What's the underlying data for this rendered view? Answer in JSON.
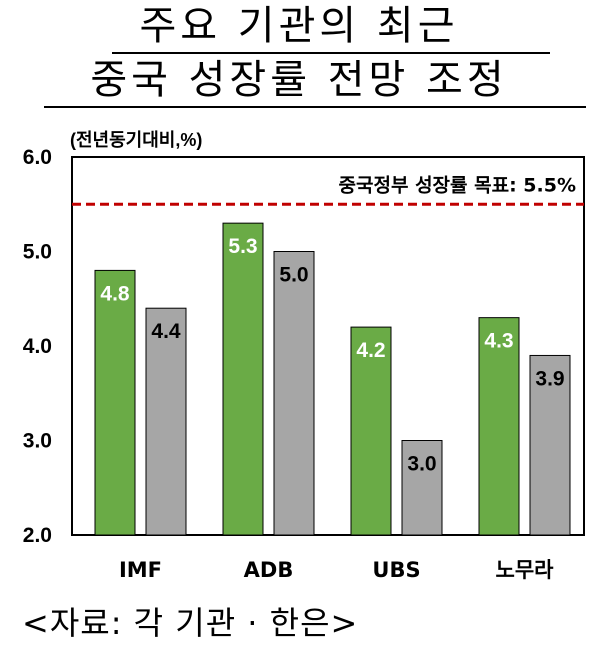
{
  "title": {
    "line1": "주요 기관의 최근",
    "line2": "중국 성장률 전망 조정"
  },
  "source": "<자료:  각 기관 · 한은>",
  "chart_data": {
    "type": "bar",
    "ylabel": "(전년동기대비,%)",
    "ylim": [
      2.0,
      6.0
    ],
    "yticks": [
      "2.0",
      "3.0",
      "4.0",
      "5.0",
      "6.0"
    ],
    "grid": false,
    "categories": [
      "IMF",
      "ADB",
      "UBS",
      "노무라"
    ],
    "series": [
      {
        "values": [
          4.8,
          5.3,
          4.2,
          4.3
        ],
        "color": "#6aab46",
        "label_color": "#ffffff"
      },
      {
        "values": [
          4.4,
          5.0,
          3.0,
          3.9
        ],
        "color": "#a6a6a6",
        "label_color": "#000000"
      }
    ],
    "data_labels": [
      [
        "4.8",
        "5.3",
        "4.2",
        "4.3"
      ],
      [
        "4.4",
        "5.0",
        "3.0",
        "3.9"
      ]
    ],
    "reference_line": {
      "value": 5.5,
      "label": "중국정부 성장률 목표: 5.5%",
      "color": "#c00000",
      "style": "dashed"
    }
  }
}
